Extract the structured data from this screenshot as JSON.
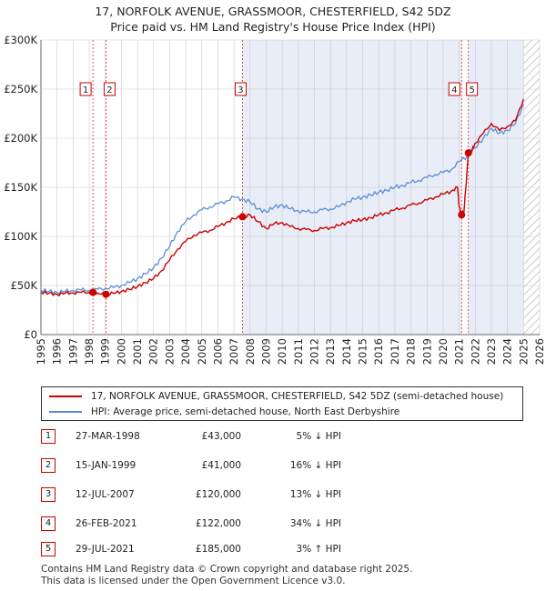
{
  "title": {
    "line1": "17, NORFOLK AVENUE, GRASSMOOR, CHESTERFIELD, S42 5DZ",
    "line2": "Price paid vs. HM Land Registry's House Price Index (HPI)"
  },
  "colors": {
    "property": "#cc0000",
    "hpi": "#5a8fd6",
    "shade": "#e8edf8",
    "grid": "#cccccc"
  },
  "legend": {
    "property": "17, NORFOLK AVENUE, GRASSMOOR, CHESTERFIELD, S42 5DZ (semi-detached house)",
    "hpi": "HPI: Average price, semi-detached house, North East Derbyshire"
  },
  "sales": [
    {
      "num": "1",
      "date": "27-MAR-1998",
      "price": "£43,000",
      "hpi": "5% ↓ HPI"
    },
    {
      "num": "2",
      "date": "15-JAN-1999",
      "price": "£41,000",
      "hpi": "16% ↓ HPI"
    },
    {
      "num": "3",
      "date": "12-JUL-2007",
      "price": "£120,000",
      "hpi": "13% ↓ HPI"
    },
    {
      "num": "4",
      "date": "26-FEB-2021",
      "price": "£122,000",
      "hpi": "34% ↓ HPI"
    },
    {
      "num": "5",
      "date": "29-JUL-2021",
      "price": "£185,000",
      "hpi": "3% ↑ HPI"
    }
  ],
  "footer": {
    "line1": "Contains HM Land Registry data © Crown copyright and database right 2025.",
    "line2": "This data is licensed under the Open Government Licence v3.0."
  },
  "chart_data": {
    "type": "line",
    "title": "Price paid vs. HM Land Registry's House Price Index (HPI)",
    "xlim": [
      1995,
      2026
    ],
    "ylim": [
      0,
      300000
    ],
    "x_ticks": [
      1995,
      1996,
      1997,
      1998,
      1999,
      2000,
      2001,
      2002,
      2003,
      2004,
      2005,
      2006,
      2007,
      2008,
      2009,
      2010,
      2011,
      2012,
      2013,
      2014,
      2015,
      2016,
      2017,
      2018,
      2019,
      2020,
      2021,
      2022,
      2023,
      2024,
      2025,
      2026
    ],
    "y_ticks": [
      {
        "value": 0,
        "label": "£0"
      },
      {
        "value": 50000,
        "label": "£50K"
      },
      {
        "value": 100000,
        "label": "£100K"
      },
      {
        "value": 150000,
        "label": "£150K"
      },
      {
        "value": 200000,
        "label": "£200K"
      },
      {
        "value": 250000,
        "label": "£250K"
      },
      {
        "value": 300000,
        "label": "£300K"
      }
    ],
    "shaded_ranges": [
      [
        2007.53,
        2021.15
      ],
      [
        2021.57,
        2025.0
      ]
    ],
    "hatched_from": 2025.0,
    "markers": [
      {
        "label": "1",
        "x": 1998.23,
        "y": 43000
      },
      {
        "label": "2",
        "x": 1999.04,
        "y": 41000
      },
      {
        "label": "3",
        "x": 2007.53,
        "y": 120000
      },
      {
        "label": "4",
        "x": 2021.15,
        "y": 122000
      },
      {
        "label": "5",
        "x": 2021.57,
        "y": 185000
      }
    ],
    "series": [
      {
        "name": "HPI: Average price, semi-detached house, North East Derbyshire",
        "x": [
          1995.0,
          1995.5,
          1996.0,
          1996.5,
          1997.0,
          1997.5,
          1998.0,
          1998.5,
          1999.0,
          1999.5,
          2000.0,
          2000.5,
          2001.0,
          2001.5,
          2002.0,
          2002.5,
          2003.0,
          2003.5,
          2004.0,
          2004.5,
          2005.0,
          2005.5,
          2006.0,
          2006.5,
          2007.0,
          2007.5,
          2008.0,
          2008.5,
          2009.0,
          2009.5,
          2010.0,
          2010.5,
          2011.0,
          2011.5,
          2012.0,
          2012.5,
          2013.0,
          2013.5,
          2014.0,
          2014.5,
          2015.0,
          2015.5,
          2016.0,
          2016.5,
          2017.0,
          2017.5,
          2018.0,
          2018.5,
          2019.0,
          2019.5,
          2020.0,
          2020.5,
          2021.0,
          2021.5,
          2022.0,
          2022.5,
          2023.0,
          2023.5,
          2024.0,
          2024.5,
          2025.0
        ],
        "values": [
          45000,
          44000,
          43000,
          44000,
          45000,
          45500,
          45000,
          46000,
          47000,
          48000,
          50000,
          53000,
          57000,
          62000,
          68000,
          78000,
          90000,
          105000,
          115000,
          122000,
          127000,
          130000,
          133000,
          136000,
          140000,
          138000,
          135000,
          128000,
          125000,
          130000,
          132000,
          128000,
          126000,
          125000,
          125000,
          127000,
          128000,
          130000,
          135000,
          138000,
          140000,
          142000,
          145000,
          147000,
          150000,
          152000,
          155000,
          157000,
          160000,
          163000,
          165000,
          168000,
          176000,
          182000,
          190000,
          200000,
          210000,
          205000,
          208000,
          215000,
          235000
        ]
      },
      {
        "name": "17, NORFOLK AVENUE, GRASSMOOR, CHESTERFIELD, S42 5DZ (semi-detached house)",
        "x": [
          1995.0,
          1995.5,
          1996.0,
          1996.5,
          1997.0,
          1997.5,
          1998.0,
          1998.23,
          1998.5,
          1999.0,
          1999.04,
          1999.5,
          2000.0,
          2000.5,
          2001.0,
          2001.5,
          2002.0,
          2002.5,
          2003.0,
          2003.5,
          2004.0,
          2004.5,
          2005.0,
          2005.5,
          2006.0,
          2006.5,
          2007.0,
          2007.53,
          2008.0,
          2008.5,
          2009.0,
          2009.5,
          2010.0,
          2010.5,
          2011.0,
          2011.5,
          2012.0,
          2012.5,
          2013.0,
          2013.5,
          2014.0,
          2014.5,
          2015.0,
          2015.5,
          2016.0,
          2016.5,
          2017.0,
          2017.5,
          2018.0,
          2018.5,
          2019.0,
          2019.5,
          2020.0,
          2020.5,
          2020.9,
          2021.0,
          2021.15,
          2021.3,
          2021.57,
          2021.8,
          2022.0,
          2022.5,
          2023.0,
          2023.5,
          2024.0,
          2024.5,
          2025.0
        ],
        "values": [
          43000,
          42000,
          41000,
          42000,
          42500,
          43000,
          43000,
          43000,
          42500,
          41000,
          41000,
          42000,
          44000,
          46000,
          49000,
          53000,
          57000,
          65000,
          76000,
          87000,
          95000,
          101000,
          104000,
          106000,
          110000,
          114000,
          118000,
          120000,
          122000,
          115000,
          108000,
          113000,
          114000,
          110000,
          108000,
          107000,
          106000,
          108000,
          109000,
          111000,
          114000,
          116000,
          117000,
          119000,
          122000,
          124000,
          127000,
          129000,
          132000,
          134000,
          137000,
          140000,
          143000,
          146000,
          150000,
          130000,
          122000,
          125000,
          185000,
          188000,
          195000,
          205000,
          215000,
          208000,
          212000,
          218000,
          240000
        ]
      }
    ]
  }
}
